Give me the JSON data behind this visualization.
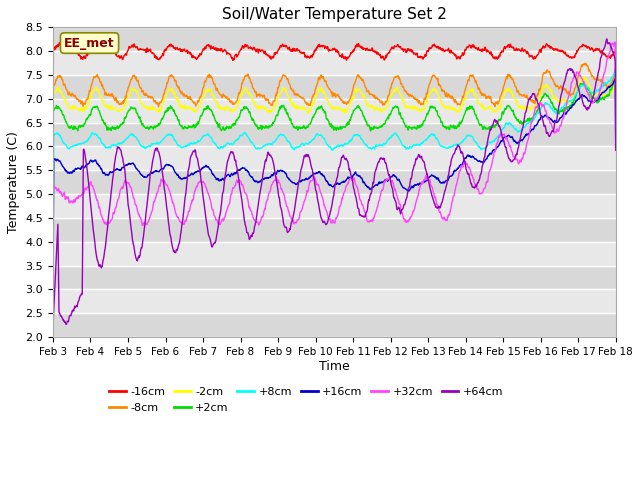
{
  "title": "Soil/Water Temperature Set 2",
  "xlabel": "Time",
  "ylabel": "Temperature (C)",
  "ylim": [
    2.0,
    8.5
  ],
  "yticks": [
    2.0,
    2.5,
    3.0,
    3.5,
    4.0,
    4.5,
    5.0,
    5.5,
    6.0,
    6.5,
    7.0,
    7.5,
    8.0,
    8.5
  ],
  "xtick_labels": [
    "Feb 3",
    "Feb 4",
    "Feb 5",
    "Feb 6",
    "Feb 7",
    "Feb 8",
    "Feb 9",
    "Feb 10",
    "Feb 11",
    "Feb 12",
    "Feb 13",
    "Feb 14",
    "Feb 15",
    "Feb 16",
    "Feb 17",
    "Feb 18"
  ],
  "series": [
    {
      "label": "-16cm",
      "color": "#ff0000"
    },
    {
      "label": "-8cm",
      "color": "#ff8800"
    },
    {
      "label": "-2cm",
      "color": "#ffff00"
    },
    {
      "label": "+2cm",
      "color": "#00dd00"
    },
    {
      "label": "+8cm",
      "color": "#00ffff"
    },
    {
      "label": "+16cm",
      "color": "#0000cc"
    },
    {
      "label": "+32cm",
      "color": "#ff44ff"
    },
    {
      "label": "+64cm",
      "color": "#9900bb"
    }
  ],
  "annotation_text": "EE_met",
  "bg_color": "#ffffff",
  "plot_bg": "#e8e8e8",
  "grid_color": "#ffffff"
}
